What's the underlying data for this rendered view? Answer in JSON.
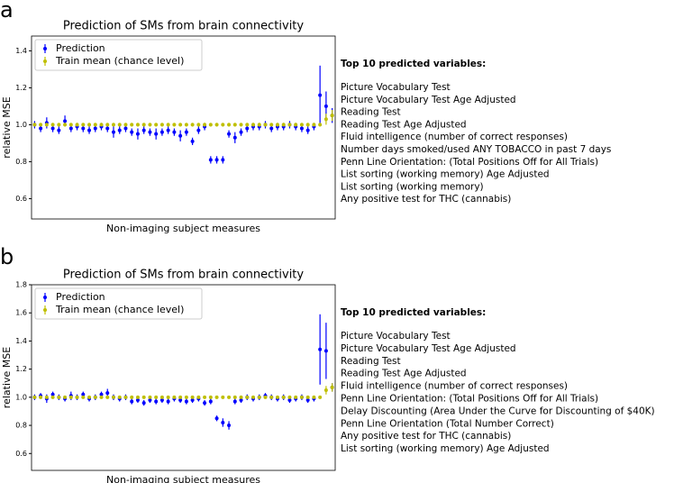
{
  "chart_data": [
    {
      "type": "errorbar",
      "panel_label": "a",
      "title": "Prediction of SMs from brain connectivity",
      "x_label": "Non-imaging subject measures",
      "y_label": "relative MSE",
      "ylim": [
        0.49,
        1.48
      ],
      "yticks": [
        0.6,
        0.8,
        {
          "value": 1,
          "label": "1.0"
        },
        1.2,
        1.4
      ],
      "legend": "upper left",
      "series": [
        {
          "name": "Prediction",
          "color": "#0000ff",
          "values": [
            1.0,
            0.98,
            1.01,
            0.98,
            0.97,
            1.02,
            0.98,
            0.99,
            0.98,
            0.97,
            0.98,
            0.99,
            0.98,
            0.96,
            0.97,
            0.98,
            0.96,
            0.95,
            0.97,
            0.96,
            0.95,
            0.96,
            0.97,
            0.96,
            0.94,
            0.96,
            0.91,
            0.97,
            0.99,
            0.81,
            0.81,
            0.81,
            0.95,
            0.93,
            0.96,
            0.98,
            0.99,
            0.99,
            1.0,
            0.98,
            0.99,
            0.99,
            1.0,
            0.99,
            0.98,
            0.97,
            0.99,
            1.16,
            1.1,
            1.05
          ],
          "errors": [
            0.02,
            0.02,
            0.03,
            0.02,
            0.02,
            0.03,
            0.02,
            0.02,
            0.02,
            0.02,
            0.02,
            0.02,
            0.02,
            0.03,
            0.02,
            0.02,
            0.02,
            0.03,
            0.02,
            0.02,
            0.03,
            0.02,
            0.02,
            0.02,
            0.03,
            0.02,
            0.02,
            0.02,
            0.02,
            0.02,
            0.02,
            0.02,
            0.02,
            0.03,
            0.02,
            0.02,
            0.02,
            0.02,
            0.02,
            0.02,
            0.02,
            0.02,
            0.02,
            0.02,
            0.02,
            0.02,
            0.02,
            0.16,
            0.08,
            0.04
          ]
        },
        {
          "name": "Train mean (chance level)",
          "color": "#bfbf00",
          "values": [
            1.0,
            1.0,
            1.0,
            1.0,
            1.0,
            1.0,
            1.0,
            1.0,
            1.0,
            1.0,
            1.0,
            1.0,
            1.0,
            1.0,
            1.0,
            1.0,
            1.0,
            1.0,
            1.0,
            1.0,
            1.0,
            1.0,
            1.0,
            1.0,
            1.0,
            1.0,
            1.0,
            1.0,
            1.0,
            1.0,
            1.0,
            1.0,
            1.0,
            1.0,
            1.0,
            1.0,
            1.0,
            1.0,
            1.0,
            1.0,
            1.0,
            1.0,
            1.0,
            1.0,
            1.0,
            1.0,
            1.0,
            1.0,
            1.03,
            1.05
          ],
          "errors": [
            0.01,
            0.01,
            0.01,
            0.01,
            0.01,
            0.01,
            0.01,
            0.01,
            0.01,
            0.01,
            0.01,
            0.01,
            0.01,
            0.01,
            0.01,
            0.01,
            0.01,
            0.01,
            0.01,
            0.01,
            0.01,
            0.01,
            0.01,
            0.01,
            0.01,
            0.01,
            0.01,
            0.01,
            0.01,
            0.01,
            0.01,
            0.01,
            0.01,
            0.01,
            0.01,
            0.01,
            0.01,
            0.01,
            0.01,
            0.01,
            0.01,
            0.01,
            0.01,
            0.01,
            0.01,
            0.01,
            0.01,
            0.01,
            0.03,
            0.03
          ]
        }
      ],
      "side_title": "Top 10 predicted variables:",
      "side_items": [
        "Picture Vocabulary Test",
        "Picture Vocabulary Test Age Adjusted",
        "Reading Test",
        "Reading Test Age Adjusted",
        "Fluid intelligence (number of correct responses)",
        "Number days smoked/used ANY TOBACCO in past 7 days",
        "Penn Line Orientation: (Total Positions Off for All Trials)",
        "List sorting (working memory) Age Adjusted",
        "List sorting (working memory)",
        "Any positive test for THC (cannabis)"
      ]
    },
    {
      "type": "errorbar",
      "panel_label": "b",
      "title": "Prediction of SMs from brain connectivity",
      "x_label": "Non-imaging subject measures",
      "y_label": "relative MSE",
      "ylim": [
        0.48,
        1.8
      ],
      "yticks": [
        0.6,
        0.8,
        {
          "value": 1,
          "label": "1.0"
        },
        1.2,
        1.4,
        1.6,
        1.8
      ],
      "legend": "upper left",
      "series": [
        {
          "name": "Prediction",
          "color": "#0000ff",
          "values": [
            1.0,
            1.01,
            0.99,
            1.02,
            1.0,
            0.99,
            1.01,
            1.0,
            1.02,
            0.99,
            1.0,
            1.02,
            1.03,
            1.0,
            0.99,
            1.0,
            0.97,
            0.98,
            0.96,
            0.98,
            0.97,
            0.98,
            0.97,
            0.99,
            0.98,
            0.97,
            0.98,
            0.99,
            0.96,
            0.97,
            0.85,
            0.82,
            0.8,
            0.97,
            0.98,
            1.0,
            0.99,
            1.0,
            1.01,
            1.0,
            0.99,
            1.0,
            0.98,
            0.99,
            1.0,
            0.98,
            0.99,
            1.34,
            1.33,
            1.07
          ],
          "errors": [
            0.02,
            0.02,
            0.03,
            0.02,
            0.02,
            0.02,
            0.03,
            0.02,
            0.02,
            0.02,
            0.02,
            0.02,
            0.03,
            0.02,
            0.02,
            0.02,
            0.02,
            0.02,
            0.02,
            0.02,
            0.02,
            0.02,
            0.02,
            0.02,
            0.02,
            0.02,
            0.02,
            0.02,
            0.02,
            0.02,
            0.02,
            0.03,
            0.03,
            0.02,
            0.02,
            0.02,
            0.02,
            0.02,
            0.02,
            0.02,
            0.02,
            0.02,
            0.02,
            0.02,
            0.02,
            0.02,
            0.02,
            0.25,
            0.2,
            0.03
          ]
        },
        {
          "name": "Train mean (chance level)",
          "color": "#bfbf00",
          "values": [
            1.0,
            1.0,
            1.0,
            1.0,
            1.0,
            1.0,
            1.0,
            1.0,
            1.0,
            1.0,
            1.0,
            1.0,
            1.0,
            1.0,
            1.0,
            1.0,
            1.0,
            1.0,
            1.0,
            1.0,
            1.0,
            1.0,
            1.0,
            1.0,
            1.0,
            1.0,
            1.0,
            1.0,
            1.0,
            1.0,
            1.0,
            1.0,
            1.0,
            1.0,
            1.0,
            1.0,
            1.0,
            1.0,
            1.0,
            1.0,
            1.0,
            1.0,
            1.0,
            1.0,
            1.0,
            1.0,
            1.0,
            1.0,
            1.05,
            1.07
          ],
          "errors": [
            0.01,
            0.01,
            0.01,
            0.01,
            0.01,
            0.01,
            0.01,
            0.01,
            0.01,
            0.01,
            0.01,
            0.01,
            0.01,
            0.01,
            0.01,
            0.01,
            0.01,
            0.01,
            0.01,
            0.01,
            0.01,
            0.01,
            0.01,
            0.01,
            0.01,
            0.01,
            0.01,
            0.01,
            0.01,
            0.01,
            0.01,
            0.01,
            0.01,
            0.01,
            0.01,
            0.01,
            0.01,
            0.01,
            0.01,
            0.01,
            0.01,
            0.01,
            0.01,
            0.01,
            0.01,
            0.01,
            0.01,
            0.01,
            0.03,
            0.03
          ]
        }
      ],
      "side_title": "Top 10 predicted variables:",
      "side_items": [
        "Picture Vocabulary Test",
        "Picture Vocabulary Test Age Adjusted",
        "Reading Test",
        "Reading Test Age Adjusted",
        "Fluid intelligence (number of correct responses)",
        "Penn Line Orientation: (Total Positions Off for All Trials)",
        "Delay Discounting (Area Under the Curve for Discounting of $40K)",
        "Penn Line Orientation (Total Number Correct)",
        "Any positive test for THC (cannabis)",
        "List sorting (working memory) Age Adjusted"
      ]
    }
  ]
}
